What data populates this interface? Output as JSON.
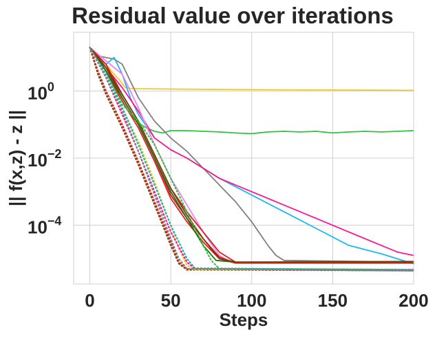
{
  "chart_data": {
    "type": "line",
    "title": "Residual value over iterations",
    "xlabel": "Steps",
    "ylabel": "|| f(x,z)  - z ||",
    "xlim": [
      -10,
      200
    ],
    "ylim_log10": [
      -5.75,
      1.75
    ],
    "y_scale": "log",
    "grid": true,
    "x_ticks": [
      {
        "value": 0,
        "label": "0"
      },
      {
        "value": 50,
        "label": "50"
      },
      {
        "value": 100,
        "label": "100"
      },
      {
        "value": 150,
        "label": "150"
      },
      {
        "value": 200,
        "label": "200"
      }
    ],
    "y_ticks": [
      {
        "value": 0,
        "base": "10",
        "exp": "0"
      },
      {
        "value": -2,
        "base": "10",
        "exp": "−2"
      },
      {
        "value": -4,
        "base": "10",
        "exp": "−4"
      }
    ],
    "series": [
      {
        "name": "gold",
        "color": "#f4c820",
        "style": "solid",
        "points": [
          [
            0,
            1.3
          ],
          [
            5,
            1.0
          ],
          [
            10,
            0.8
          ],
          [
            15,
            0.5
          ],
          [
            18,
            0.35
          ],
          [
            22,
            0.1
          ],
          [
            25,
            0.08
          ],
          [
            30,
            0.07
          ],
          [
            50,
            0.06
          ],
          [
            100,
            0.04
          ],
          [
            150,
            0.03
          ],
          [
            200,
            0.02
          ]
        ]
      },
      {
        "name": "green",
        "color": "#2ec43a",
        "style": "solid",
        "points": [
          [
            0,
            1.3
          ],
          [
            5,
            1.0
          ],
          [
            10,
            0.6
          ],
          [
            15,
            0.1
          ],
          [
            20,
            -0.3
          ],
          [
            25,
            -0.7
          ],
          [
            30,
            -0.95
          ],
          [
            35,
            -1.1
          ],
          [
            40,
            -1.2
          ],
          [
            45,
            -1.25
          ],
          [
            50,
            -1.18
          ],
          [
            60,
            -1.18
          ],
          [
            70,
            -1.2
          ],
          [
            80,
            -1.22
          ],
          [
            90,
            -1.25
          ],
          [
            100,
            -1.27
          ],
          [
            110,
            -1.22
          ],
          [
            120,
            -1.2
          ],
          [
            130,
            -1.22
          ],
          [
            140,
            -1.2
          ],
          [
            150,
            -1.25
          ],
          [
            160,
            -1.22
          ],
          [
            170,
            -1.2
          ],
          [
            180,
            -1.22
          ],
          [
            190,
            -1.2
          ],
          [
            200,
            -1.18
          ]
        ]
      },
      {
        "name": "gray",
        "color": "#808080",
        "style": "solid",
        "points": [
          [
            0,
            1.3
          ],
          [
            5,
            1.05
          ],
          [
            10,
            1.0
          ],
          [
            15,
            0.95
          ],
          [
            20,
            0.8
          ],
          [
            25,
            0.3
          ],
          [
            30,
            -0.2
          ],
          [
            40,
            -0.9
          ],
          [
            50,
            -1.4
          ],
          [
            60,
            -1.8
          ],
          [
            70,
            -2.3
          ],
          [
            80,
            -2.8
          ],
          [
            90,
            -3.3
          ],
          [
            100,
            -3.9
          ],
          [
            110,
            -4.6
          ],
          [
            115,
            -4.9
          ],
          [
            120,
            -5.05
          ],
          [
            200,
            -5.1
          ]
        ]
      },
      {
        "name": "cyan",
        "color": "#1ab8f0",
        "style": "solid",
        "points": [
          [
            0,
            1.3
          ],
          [
            5,
            1.0
          ],
          [
            10,
            0.8
          ],
          [
            15,
            1.0
          ],
          [
            20,
            0.5
          ],
          [
            25,
            -0.2
          ],
          [
            30,
            -0.7
          ],
          [
            40,
            -1.4
          ],
          [
            50,
            -1.75
          ],
          [
            60,
            -2.0
          ],
          [
            70,
            -2.3
          ],
          [
            80,
            -2.6
          ],
          [
            100,
            -3.1
          ],
          [
            120,
            -3.6
          ],
          [
            140,
            -4.1
          ],
          [
            160,
            -4.6
          ],
          [
            180,
            -4.85
          ],
          [
            190,
            -5.0
          ],
          [
            200,
            -5.15
          ]
        ]
      },
      {
        "name": "magenta",
        "color": "#ff1493",
        "style": "solid",
        "points": [
          [
            0,
            1.3
          ],
          [
            5,
            1.0
          ],
          [
            10,
            0.7
          ],
          [
            20,
            0.1
          ],
          [
            30,
            -0.6
          ],
          [
            40,
            -1.4
          ],
          [
            50,
            -1.75
          ],
          [
            60,
            -2.0
          ],
          [
            70,
            -2.3
          ],
          [
            80,
            -2.6
          ],
          [
            100,
            -3.0
          ],
          [
            120,
            -3.4
          ],
          [
            140,
            -3.8
          ],
          [
            160,
            -4.2
          ],
          [
            180,
            -4.6
          ],
          [
            190,
            -4.8
          ],
          [
            200,
            -4.9
          ]
        ]
      },
      {
        "name": "violet",
        "color": "#ee82ee",
        "style": "solid",
        "points": [
          [
            0,
            1.3
          ],
          [
            10,
            0.9
          ],
          [
            20,
            0.5
          ],
          [
            30,
            -0.5
          ],
          [
            40,
            -1.6
          ],
          [
            50,
            -2.6
          ],
          [
            60,
            -3.4
          ],
          [
            70,
            -4.2
          ],
          [
            80,
            -4.9
          ],
          [
            85,
            -5.05
          ],
          [
            90,
            -5.1
          ],
          [
            200,
            -5.1
          ]
        ]
      },
      {
        "name": "red-1",
        "color": "#d61f1f",
        "style": "solid",
        "points": [
          [
            0,
            1.3
          ],
          [
            10,
            0.8
          ],
          [
            20,
            -0.1
          ],
          [
            30,
            -0.9
          ],
          [
            40,
            -1.9
          ],
          [
            50,
            -2.9
          ],
          [
            60,
            -3.6
          ],
          [
            70,
            -4.2
          ],
          [
            80,
            -4.8
          ],
          [
            90,
            -5.1
          ],
          [
            100,
            -5.12
          ],
          [
            120,
            -5.1
          ],
          [
            150,
            -5.12
          ],
          [
            200,
            -5.1
          ]
        ]
      },
      {
        "name": "red-2",
        "color": "#c81818",
        "style": "solid",
        "points": [
          [
            0,
            1.3
          ],
          [
            10,
            0.7
          ],
          [
            20,
            -0.2
          ],
          [
            30,
            -1.0
          ],
          [
            40,
            -2.0
          ],
          [
            50,
            -3.1
          ],
          [
            60,
            -3.8
          ],
          [
            70,
            -4.4
          ],
          [
            80,
            -4.95
          ],
          [
            90,
            -5.12
          ],
          [
            120,
            -5.1
          ],
          [
            200,
            -5.12
          ]
        ]
      },
      {
        "name": "red-3",
        "color": "#e02020",
        "style": "solid",
        "points": [
          [
            0,
            1.3
          ],
          [
            10,
            0.6
          ],
          [
            20,
            -0.3
          ],
          [
            30,
            -1.1
          ],
          [
            40,
            -2.1
          ],
          [
            50,
            -3.2
          ],
          [
            60,
            -3.9
          ],
          [
            70,
            -4.5
          ],
          [
            80,
            -5.0
          ],
          [
            90,
            -5.13
          ],
          [
            200,
            -5.13
          ]
        ]
      },
      {
        "name": "dark-green",
        "color": "#1b6e1b",
        "style": "solid",
        "points": [
          [
            0,
            1.3
          ],
          [
            10,
            0.6
          ],
          [
            20,
            -0.2
          ],
          [
            30,
            -1.0
          ],
          [
            40,
            -2.0
          ],
          [
            50,
            -3.0
          ],
          [
            60,
            -3.8
          ],
          [
            70,
            -4.6
          ],
          [
            78,
            -5.05
          ],
          [
            90,
            -5.1
          ],
          [
            200,
            -5.1
          ]
        ]
      },
      {
        "name": "brown",
        "color": "#7a3b0a",
        "style": "solid",
        "points": [
          [
            0,
            1.3
          ],
          [
            10,
            0.7
          ],
          [
            20,
            -0.1
          ],
          [
            30,
            -0.9
          ],
          [
            40,
            -1.9
          ],
          [
            50,
            -2.9
          ],
          [
            60,
            -3.7
          ],
          [
            70,
            -4.4
          ],
          [
            80,
            -5.0
          ],
          [
            90,
            -5.1
          ],
          [
            200,
            -5.08
          ]
        ]
      },
      {
        "name": "dot-red",
        "color": "#e02020",
        "style": "dotted",
        "points": [
          [
            0,
            1.3
          ],
          [
            5,
            0.6
          ],
          [
            10,
            0.0
          ],
          [
            20,
            -1.0
          ],
          [
            30,
            -2.1
          ],
          [
            40,
            -3.3
          ],
          [
            50,
            -4.5
          ],
          [
            55,
            -5.1
          ],
          [
            60,
            -5.3
          ],
          [
            200,
            -5.33
          ]
        ]
      },
      {
        "name": "dot-brown",
        "color": "#8b4513",
        "style": "dotted",
        "points": [
          [
            0,
            1.3
          ],
          [
            5,
            0.5
          ],
          [
            10,
            -0.1
          ],
          [
            20,
            -1.1
          ],
          [
            30,
            -2.2
          ],
          [
            40,
            -3.4
          ],
          [
            50,
            -4.6
          ],
          [
            55,
            -5.15
          ],
          [
            60,
            -5.33
          ],
          [
            200,
            -5.35
          ]
        ]
      },
      {
        "name": "dot-green",
        "color": "#2ec43a",
        "style": "dotted",
        "points": [
          [
            0,
            1.3
          ],
          [
            10,
            0.5
          ],
          [
            20,
            -0.4
          ],
          [
            30,
            -0.9
          ],
          [
            40,
            -1.6
          ],
          [
            50,
            -2.6
          ],
          [
            60,
            -3.6
          ],
          [
            70,
            -4.6
          ],
          [
            75,
            -5.05
          ],
          [
            80,
            -5.3
          ],
          [
            200,
            -5.32
          ]
        ]
      },
      {
        "name": "dot-gold",
        "color": "#f4c820",
        "style": "dotted",
        "points": [
          [
            0,
            1.3
          ],
          [
            10,
            0.5
          ],
          [
            20,
            -0.5
          ],
          [
            30,
            -1.5
          ],
          [
            40,
            -2.7
          ],
          [
            50,
            -4.0
          ],
          [
            55,
            -4.7
          ],
          [
            60,
            -5.2
          ],
          [
            65,
            -5.32
          ],
          [
            200,
            -5.33
          ]
        ]
      },
      {
        "name": "dot-magenta",
        "color": "#ff1493",
        "style": "dotted",
        "points": [
          [
            0,
            1.3
          ],
          [
            10,
            0.4
          ],
          [
            20,
            -0.7
          ],
          [
            30,
            -1.8
          ],
          [
            40,
            -3.0
          ],
          [
            50,
            -4.2
          ],
          [
            60,
            -5.1
          ],
          [
            65,
            -5.3
          ],
          [
            200,
            -5.34
          ]
        ]
      },
      {
        "name": "dot-teal",
        "color": "#20b2aa",
        "style": "dotted",
        "points": [
          [
            0,
            1.3
          ],
          [
            10,
            0.5
          ],
          [
            20,
            -0.5
          ],
          [
            30,
            -1.6
          ],
          [
            40,
            -2.8
          ],
          [
            50,
            -4.0
          ],
          [
            60,
            -5.0
          ],
          [
            65,
            -5.28
          ],
          [
            200,
            -5.33
          ]
        ]
      },
      {
        "name": "dot-gray",
        "color": "#808080",
        "style": "dotted",
        "points": [
          [
            0,
            1.3
          ],
          [
            10,
            0.4
          ],
          [
            20,
            -0.6
          ],
          [
            30,
            -1.8
          ],
          [
            40,
            -3.1
          ],
          [
            50,
            -4.4
          ],
          [
            55,
            -5.0
          ],
          [
            60,
            -5.3
          ],
          [
            200,
            -5.36
          ]
        ]
      }
    ]
  }
}
